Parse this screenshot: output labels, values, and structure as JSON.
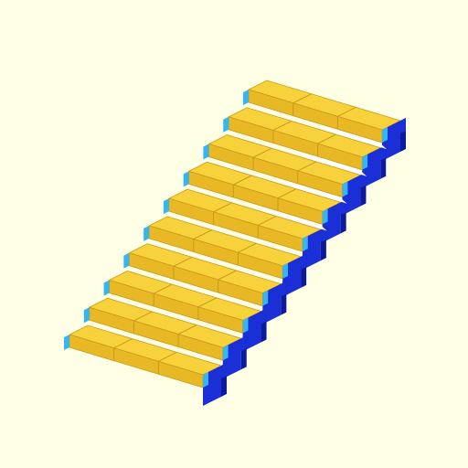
{
  "scene": {
    "background": "#ffffe5",
    "object": "staircase-model",
    "step_count": 10,
    "planks_per_step": 3,
    "colors": {
      "plank_top": "#f7d23a",
      "plank_front": "#e8b825",
      "plank_edge": "#c99a1c",
      "riser_blue": "#1a2fd6",
      "riser_dark": "#0d1a9e",
      "rail_cyan": "#35b6f0",
      "under_pink": "#f0857c",
      "cutout_white": "#ffffff"
    }
  }
}
